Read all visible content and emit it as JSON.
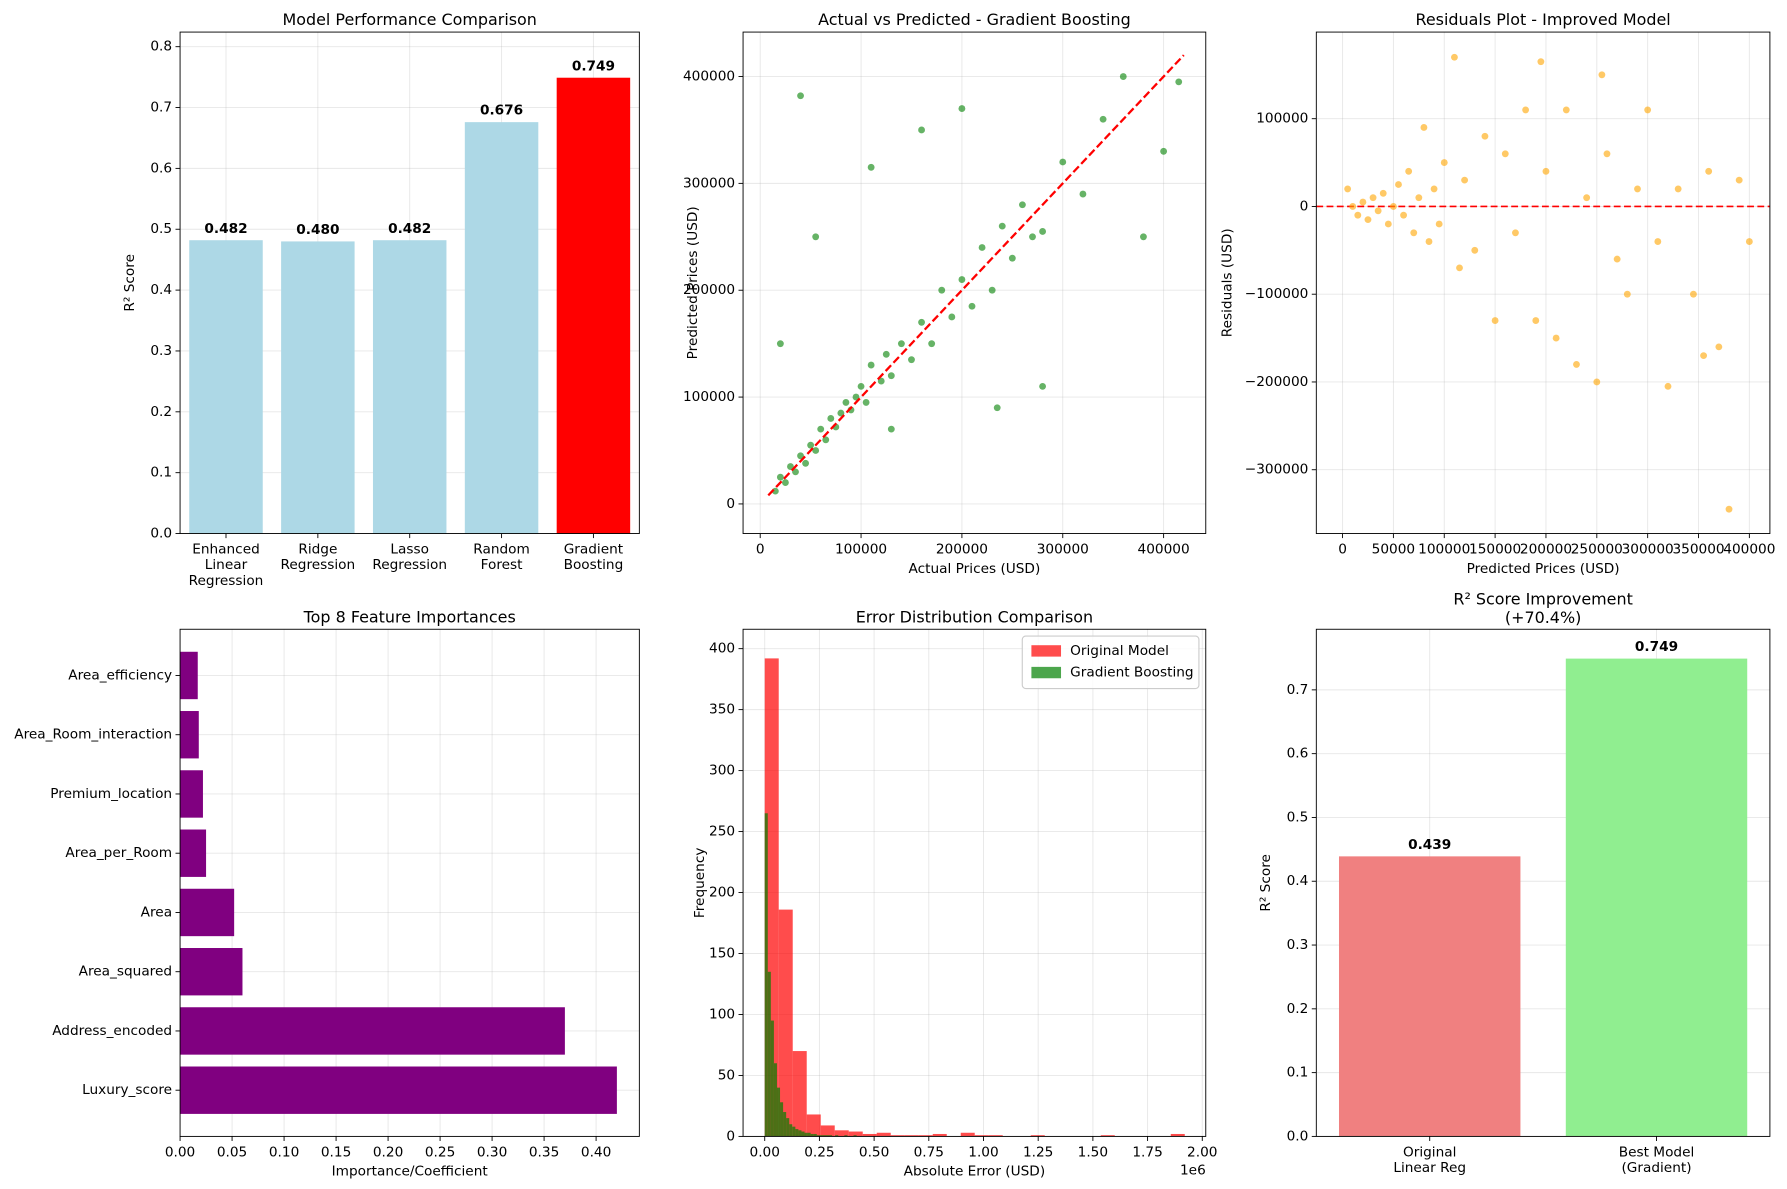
{
  "chart_data": [
    {
      "type": "bar",
      "title": "Model Performance Comparison",
      "ylabel": "R² Score",
      "categories": [
        "Enhanced\nLinear\nRegression",
        "Ridge\nRegression",
        "Lasso\nRegression",
        "Random\nForest",
        "Gradient\nBoosting"
      ],
      "values": [
        0.482,
        0.48,
        0.482,
        0.676,
        0.749
      ],
      "value_labels": [
        "0.482",
        "0.480",
        "0.482",
        "0.676",
        "0.749"
      ],
      "colors": [
        "#add8e6",
        "#add8e6",
        "#add8e6",
        "#add8e6",
        "#ff0000"
      ],
      "ylim": [
        0,
        0.824
      ],
      "yticks": [
        {
          "value": 0,
          "label": "0.0"
        },
        0.1,
        0.2,
        0.3,
        0.4,
        0.5,
        0.6,
        0.7,
        0.8
      ],
      "grid": true
    },
    {
      "type": "scatter",
      "title": "Actual vs Predicted - Gradient Boosting",
      "xlabel": "Actual Prices (USD)",
      "ylabel": "Predicted Prices (USD)",
      "color": "#008000",
      "x": [
        15000,
        20000,
        25000,
        30000,
        35000,
        40000,
        45000,
        50000,
        55000,
        60000,
        65000,
        70000,
        75000,
        80000,
        85000,
        90000,
        95000,
        100000,
        105000,
        110000,
        120000,
        125000,
        130000,
        140000,
        150000,
        160000,
        170000,
        180000,
        190000,
        200000,
        210000,
        220000,
        230000,
        240000,
        250000,
        260000,
        270000,
        280000,
        300000,
        320000,
        340000,
        360000,
        380000,
        400000,
        415000,
        40000,
        110000,
        55000,
        20000,
        160000,
        235000,
        280000,
        130000,
        200000
      ],
      "y": [
        12000,
        25000,
        20000,
        35000,
        30000,
        45000,
        38000,
        55000,
        50000,
        70000,
        60000,
        80000,
        72000,
        85000,
        95000,
        88000,
        100000,
        110000,
        95000,
        130000,
        115000,
        140000,
        120000,
        150000,
        135000,
        170000,
        150000,
        200000,
        175000,
        210000,
        185000,
        240000,
        200000,
        260000,
        230000,
        280000,
        250000,
        255000,
        320000,
        290000,
        360000,
        400000,
        250000,
        330000,
        395000,
        382000,
        315000,
        250000,
        150000,
        350000,
        90000,
        110000,
        70000,
        370000
      ],
      "reference_line": {
        "x": [
          8000,
          420000
        ],
        "y": [
          8000,
          420000
        ],
        "color": "#ff0000"
      },
      "xlim": [
        -17000,
        441800
      ],
      "ylim": [
        -27700,
        441600
      ],
      "xticks": [
        0,
        100000,
        200000,
        300000,
        400000
      ],
      "yticks": [
        0,
        100000,
        200000,
        300000,
        400000
      ],
      "grid": true
    },
    {
      "type": "scatter",
      "title": "Residuals Plot - Improved Model",
      "xlabel": "Predicted Prices (USD)",
      "ylabel": "Residuals (USD)",
      "color": "#ffa500",
      "x": [
        5000,
        10000,
        15000,
        20000,
        25000,
        30000,
        35000,
        40000,
        45000,
        50000,
        55000,
        60000,
        65000,
        70000,
        75000,
        80000,
        85000,
        90000,
        95000,
        100000,
        110000,
        115000,
        120000,
        130000,
        140000,
        150000,
        160000,
        170000,
        180000,
        190000,
        200000,
        210000,
        220000,
        230000,
        240000,
        250000,
        260000,
        270000,
        280000,
        290000,
        300000,
        310000,
        320000,
        330000,
        345000,
        355000,
        360000,
        370000,
        380000,
        390000,
        400000,
        255000,
        195000
      ],
      "y": [
        20000,
        0,
        -10000,
        5000,
        -15000,
        10000,
        -5000,
        15000,
        -20000,
        0,
        25000,
        -10000,
        40000,
        -30000,
        10000,
        90000,
        -40000,
        20000,
        -20000,
        50000,
        170000,
        -70000,
        30000,
        -50000,
        80000,
        -130000,
        60000,
        -30000,
        110000,
        -130000,
        40000,
        -150000,
        110000,
        -180000,
        10000,
        -200000,
        60000,
        -60000,
        -100000,
        20000,
        110000,
        -40000,
        -205000,
        20000,
        -100000,
        -170000,
        40000,
        -160000,
        -345000,
        30000,
        -40000,
        150000,
        165000
      ],
      "hline": 0,
      "hline_color": "#ff0000",
      "xlim": [
        -25800,
        420200
      ],
      "ylim": [
        -372700,
        198700
      ],
      "xticks": [
        0,
        50000,
        100000,
        150000,
        200000,
        250000,
        300000,
        350000,
        400000
      ],
      "yticks": [
        {
          "value": -300000,
          "label": "−300000"
        },
        {
          "value": -200000,
          "label": "−200000"
        },
        {
          "value": -100000,
          "label": "−100000"
        },
        0,
        100000
      ],
      "grid": true
    },
    {
      "type": "barh",
      "title": "Top 8 Feature Importances",
      "xlabel": "Importance/Coefficient",
      "color": "#800080",
      "categories": [
        "Luxury_score",
        "Address_encoded",
        "Area_squared",
        "Area",
        "Area_per_Room",
        "Premium_location",
        "Area_Room_interaction",
        "Area_efficiency"
      ],
      "values": [
        0.42,
        0.37,
        0.06,
        0.052,
        0.025,
        0.022,
        0.018,
        0.017
      ],
      "xlim": [
        0,
        0.4416
      ],
      "xticks": [
        {
          "value": 0,
          "label": "0.00"
        },
        {
          "value": 0.05,
          "label": "0.05"
        },
        {
          "value": 0.1,
          "label": "0.10"
        },
        {
          "value": 0.15,
          "label": "0.15"
        },
        {
          "value": 0.2,
          "label": "0.20"
        },
        {
          "value": 0.25,
          "label": "0.25"
        },
        {
          "value": 0.3,
          "label": "0.30"
        },
        {
          "value": 0.35,
          "label": "0.35"
        },
        {
          "value": 0.4,
          "label": "0.40"
        }
      ],
      "grid": true
    },
    {
      "type": "histogram",
      "title": "Error Distribution Comparison",
      "xlabel": "Absolute Error (USD)",
      "ylabel": "Frequency",
      "x_offset_label": "1e6",
      "legend": "upper right",
      "series": [
        {
          "name": "Original Model",
          "color": "#ff0000",
          "bins": [
            0,
            0.064,
            0.128,
            0.192,
            0.256,
            0.32,
            0.384,
            0.448,
            0.512,
            0.576,
            0.64,
            0.704,
            0.768,
            0.832,
            0.896,
            0.96,
            1.024,
            1.088,
            1.152,
            1.216,
            1.28,
            1.344,
            1.408,
            1.472,
            1.536,
            1.6,
            1.664,
            1.728,
            1.792,
            1.856,
            1.92
          ],
          "values": [
            392,
            186,
            70,
            18,
            9,
            5,
            4,
            2,
            3,
            1,
            1,
            1,
            2,
            0,
            3,
            1,
            1,
            0,
            0,
            1,
            0,
            0,
            0,
            0,
            1,
            0,
            0,
            0,
            0,
            2
          ]
        },
        {
          "name": "Gradient Boosting",
          "color": "#008000",
          "bins": [
            0,
            0.014,
            0.028,
            0.042,
            0.056,
            0.07,
            0.084,
            0.098,
            0.112,
            0.126,
            0.14,
            0.154,
            0.168,
            0.182,
            0.196,
            0.21,
            0.224,
            0.238,
            0.252,
            0.266,
            0.28,
            0.294,
            0.308,
            0.322,
            0.336,
            0.35,
            0.364,
            0.378,
            0.392,
            0.406,
            0.42
          ],
          "values": [
            265,
            135,
            95,
            60,
            40,
            28,
            20,
            15,
            10,
            8,
            6,
            5,
            4,
            3,
            3,
            2,
            2,
            1,
            1,
            1,
            1,
            1,
            0,
            1,
            0,
            0,
            1,
            0,
            0,
            1
          ]
        }
      ],
      "xlim": [
        -0.099,
        2.016
      ],
      "ylim": [
        0,
        415.9
      ],
      "xticks": [
        {
          "value": 0,
          "label": "0.00"
        },
        0.25,
        {
          "value": 0.5,
          "label": "0.50"
        },
        0.75,
        {
          "value": 1,
          "label": "1.00"
        },
        1.25,
        {
          "value": 1.5,
          "label": "1.50"
        },
        1.75,
        {
          "value": 2,
          "label": "2.00"
        }
      ],
      "yticks": [
        0,
        50,
        100,
        150,
        200,
        250,
        300,
        350,
        400
      ],
      "grid": true
    },
    {
      "type": "bar",
      "title": "R² Score Improvement\n(+70.4%)",
      "ylabel": "R² Score",
      "categories": [
        "Original\nLinear Reg",
        "Best Model\n(Gradient)"
      ],
      "values": [
        0.439,
        0.749
      ],
      "value_labels": [
        "0.439",
        "0.749"
      ],
      "colors": [
        "#f08080",
        "#90ee90"
      ],
      "ylim": [
        0,
        0.795
      ],
      "yticks": [
        {
          "value": 0,
          "label": "0.0"
        },
        0.1,
        0.2,
        0.3,
        0.4,
        0.5,
        0.6,
        0.7
      ],
      "grid": true
    }
  ]
}
